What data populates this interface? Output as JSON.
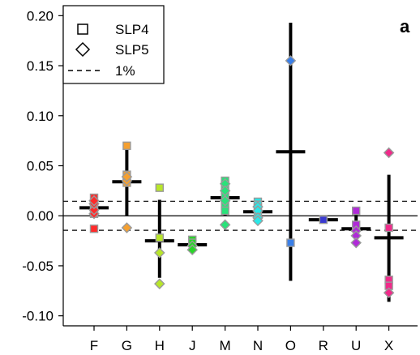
{
  "chart_data": {
    "type": "scatter",
    "panel_label": "a",
    "categories": [
      "F",
      "G",
      "H",
      "J",
      "M",
      "N",
      "O",
      "R",
      "U",
      "X"
    ],
    "colors": [
      "#ff2a2a",
      "#f5a030",
      "#b8e62a",
      "#2ad52a",
      "#2ae27a",
      "#2ae8e8",
      "#3a7fe8",
      "#3a3ad0",
      "#b02ad8",
      "#f02a8a"
    ],
    "ylim": [
      -0.11,
      0.21
    ],
    "yticks": [
      -0.1,
      -0.05,
      0.0,
      0.05,
      0.1,
      0.15,
      0.2
    ],
    "ytick_labels": [
      "-0.10",
      "-0.05",
      "0.00",
      "0.05",
      "0.10",
      "0.15",
      "0.20"
    ],
    "threshold": 0.0145,
    "legend": [
      {
        "marker": "square",
        "label": "SLP4"
      },
      {
        "marker": "diamond",
        "label": "SLP5"
      },
      {
        "marker": "dashed-line",
        "label": "1%"
      }
    ],
    "series": [
      {
        "category": "F",
        "mean": 0.008,
        "range": [
          -0.001,
          0.017
        ],
        "slp4": [
          -0.013,
          0.002,
          0.008,
          0.012,
          0.018
        ],
        "slp5": [
          0.002,
          0.006,
          0.012,
          0.015
        ]
      },
      {
        "category": "G",
        "mean": 0.034,
        "range": [
          0.0,
          0.07
        ],
        "slp4": [
          0.07,
          0.041,
          0.036,
          0.033
        ],
        "slp5": [
          -0.012,
          0.035,
          0.039
        ]
      },
      {
        "category": "H",
        "mean": -0.025,
        "range": [
          -0.062,
          0.016
        ],
        "slp4": [
          0.028,
          -0.022
        ],
        "slp5": [
          -0.037,
          -0.068
        ]
      },
      {
        "category": "J",
        "mean": -0.029,
        "range": [
          -0.036,
          -0.021
        ],
        "slp4": [
          -0.024,
          -0.027
        ],
        "slp5": [
          -0.03,
          -0.034
        ]
      },
      {
        "category": "M",
        "mean": 0.018,
        "range": [
          0.0,
          0.036
        ],
        "slp4": [
          0.035,
          0.03,
          0.02,
          0.01,
          0.005
        ],
        "slp5": [
          0.032,
          0.025,
          0.015,
          -0.009
        ]
      },
      {
        "category": "N",
        "mean": 0.004,
        "range": [
          -0.007,
          0.015
        ],
        "slp4": [
          0.014,
          0.011,
          0.007,
          0.002
        ],
        "slp5": [
          0.009,
          0.005,
          -0.002,
          -0.005
        ]
      },
      {
        "category": "O",
        "mean": 0.064,
        "range": [
          -0.065,
          0.193
        ],
        "slp4": [
          -0.027
        ],
        "slp5": [
          0.155
        ]
      },
      {
        "category": "R",
        "mean": -0.004,
        "range": [
          -0.005,
          -0.003
        ],
        "slp4": [
          -0.004
        ],
        "slp5": []
      },
      {
        "category": "U",
        "mean": -0.013,
        "range": [
          -0.026,
          0.004
        ],
        "slp4": [
          0.005,
          -0.009
        ],
        "slp5": [
          -0.015,
          -0.02,
          -0.027
        ]
      },
      {
        "category": "X",
        "mean": -0.022,
        "range": [
          -0.086,
          0.041
        ],
        "slp4": [
          -0.012,
          -0.064,
          -0.07
        ],
        "slp5": [
          0.063,
          -0.077
        ]
      }
    ]
  }
}
